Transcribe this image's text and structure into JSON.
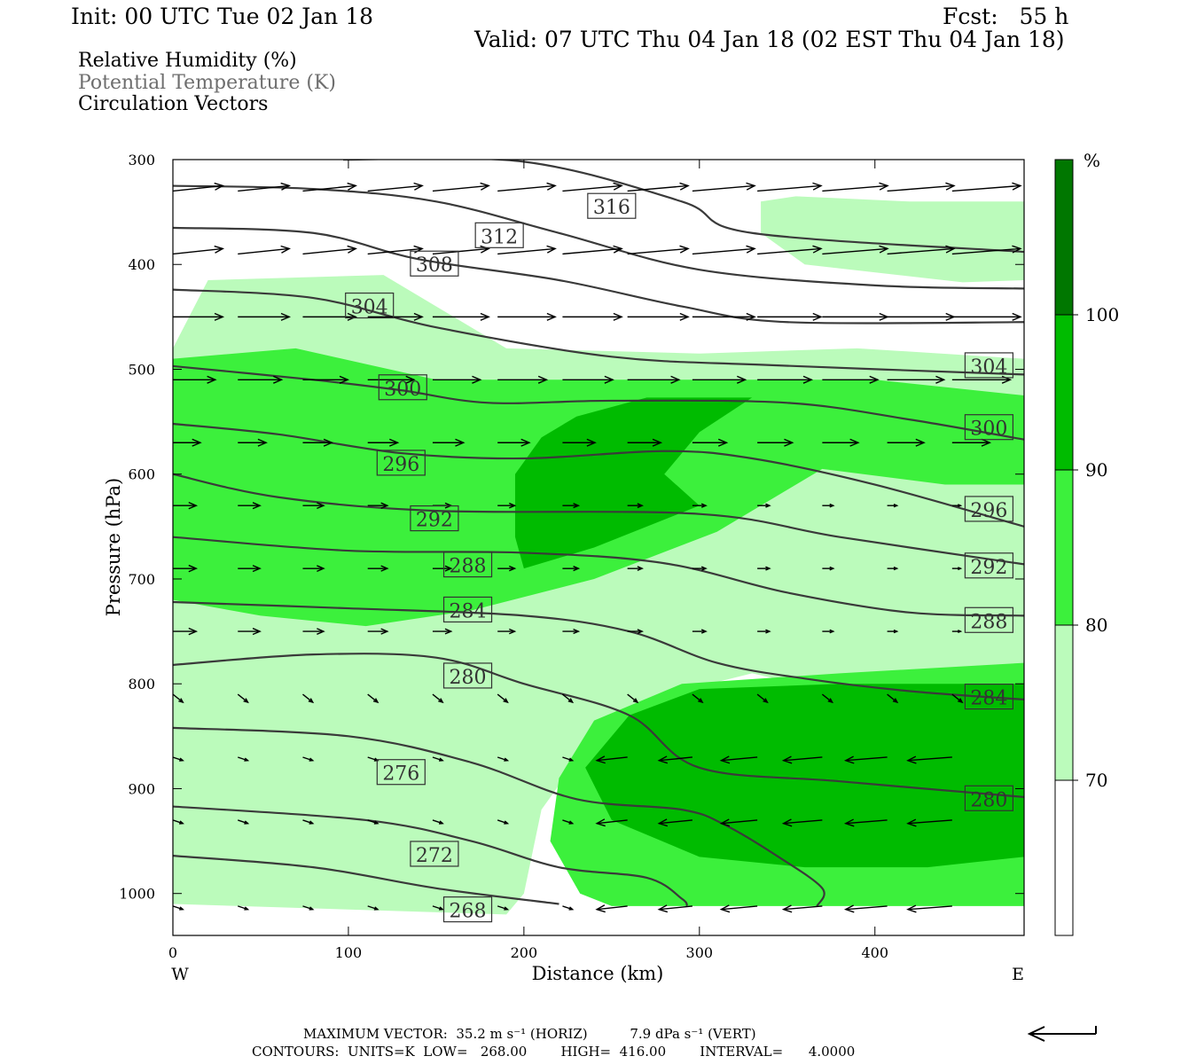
{
  "header": {
    "init": "Init: 00 UTC Tue 02 Jan 18",
    "fcst": "Fcst:   55 h",
    "valid": "Valid: 07 UTC Thu 04 Jan 18 (02 EST Thu 04 Jan 18)"
  },
  "legend_lines": {
    "rh": "Relative Humidity (%)",
    "theta": "Potential Temperature (K)",
    "vectors": "Circulation Vectors"
  },
  "footer": {
    "max_vector": "MAXIMUM VECTOR:  35.2 m s⁻¹ (HORIZ)          7.9 dPa s⁻¹ (VERT)",
    "contours": "CONTOURS:  UNITS=K  LOW=   268.00        HIGH=  416.00        INTERVAL=      4.0000"
  },
  "chart_data": {
    "type": "contour cross-section",
    "xlabel": "Distance (km)",
    "ylabel": "Pressure (hPa)",
    "xlim": [
      0,
      485
    ],
    "ylim": [
      1040,
      300
    ],
    "x_ticks": [
      0,
      100,
      200,
      300,
      400
    ],
    "y_ticks": [
      300,
      400,
      500,
      600,
      700,
      800,
      900,
      1000
    ],
    "x_end_labels": {
      "left": "W",
      "right": "E"
    },
    "colorbar": {
      "unit": "%",
      "levels": [
        70,
        80,
        90,
        100
      ],
      "colors": [
        "#ffffff",
        "#bbfbbb",
        "#3cf03c",
        "#00bb00",
        "#007700"
      ]
    },
    "theta_isentropes": [
      {
        "label": "316",
        "points": [
          [
            97,
            300
          ],
          [
            200,
            302
          ],
          [
            290,
            340
          ],
          [
            330,
            370
          ],
          [
            485,
            388
          ]
        ]
      },
      {
        "label": "312",
        "points": [
          [
            0,
            325
          ],
          [
            80,
            328
          ],
          [
            150,
            340
          ],
          [
            220,
            370
          ],
          [
            300,
            405
          ],
          [
            400,
            420
          ],
          [
            485,
            423
          ]
        ]
      },
      {
        "label": "308",
        "points": [
          [
            0,
            365
          ],
          [
            80,
            370
          ],
          [
            140,
            395
          ],
          [
            220,
            415
          ],
          [
            290,
            440
          ],
          [
            350,
            455
          ],
          [
            485,
            455
          ]
        ]
      },
      {
        "label": "304",
        "points": [
          [
            0,
            424
          ],
          [
            80,
            432
          ],
          [
            150,
            460
          ],
          [
            250,
            488
          ],
          [
            340,
            496
          ],
          [
            485,
            505
          ]
        ]
      },
      {
        "label": "300",
        "points": [
          [
            0,
            497
          ],
          [
            80,
            510
          ],
          [
            130,
            520
          ],
          [
            180,
            532
          ],
          [
            250,
            530
          ],
          [
            350,
            532
          ],
          [
            420,
            548
          ],
          [
            485,
            567
          ]
        ]
      },
      {
        "label": "296",
        "points": [
          [
            0,
            552
          ],
          [
            60,
            562
          ],
          [
            130,
            580
          ],
          [
            200,
            585
          ],
          [
            280,
            578
          ],
          [
            330,
            585
          ],
          [
            400,
            610
          ],
          [
            485,
            650
          ]
        ]
      },
      {
        "label": "292",
        "points": [
          [
            0,
            600
          ],
          [
            60,
            622
          ],
          [
            150,
            635
          ],
          [
            300,
            638
          ],
          [
            380,
            660
          ],
          [
            485,
            686
          ]
        ]
      },
      {
        "label": "288",
        "points": [
          [
            0,
            660
          ],
          [
            100,
            673
          ],
          [
            200,
            675
          ],
          [
            280,
            685
          ],
          [
            350,
            713
          ],
          [
            420,
            732
          ],
          [
            485,
            735
          ]
        ]
      },
      {
        "label": "284",
        "points": [
          [
            0,
            722
          ],
          [
            100,
            728
          ],
          [
            200,
            735
          ],
          [
            260,
            750
          ],
          [
            310,
            780
          ],
          [
            360,
            795
          ],
          [
            420,
            807
          ],
          [
            485,
            815
          ]
        ]
      },
      {
        "label": "280",
        "points": [
          [
            0,
            782
          ],
          [
            80,
            772
          ],
          [
            150,
            775
          ],
          [
            200,
            800
          ],
          [
            260,
            830
          ],
          [
            300,
            880
          ],
          [
            380,
            893
          ],
          [
            485,
            908
          ]
        ]
      },
      {
        "label": "276",
        "points": [
          [
            0,
            842
          ],
          [
            100,
            850
          ],
          [
            170,
            875
          ],
          [
            230,
            910
          ],
          [
            290,
            920
          ],
          [
            315,
            935
          ],
          [
            345,
            965
          ],
          [
            370,
            995
          ],
          [
            367,
            1012
          ]
        ]
      },
      {
        "label": "272",
        "points": [
          [
            0,
            917
          ],
          [
            110,
            930
          ],
          [
            170,
            950
          ],
          [
            220,
            975
          ],
          [
            270,
            985
          ],
          [
            290,
            1005
          ],
          [
            293,
            1012
          ]
        ]
      },
      {
        "label": "268",
        "points": [
          [
            0,
            964
          ],
          [
            80,
            975
          ],
          [
            150,
            995
          ],
          [
            220,
            1010
          ]
        ]
      }
    ],
    "theta_label_positions": {
      "316": [
        250,
        345
      ],
      "312": [
        186,
        373
      ],
      "308": [
        149,
        400
      ],
      "304": [
        112,
        440
      ],
      "300": [
        131,
        518
      ],
      "296": [
        130,
        590
      ],
      "292": [
        149,
        643
      ],
      "288": [
        168,
        687
      ],
      "284": [
        168,
        730
      ],
      "280": [
        168,
        793
      ],
      "276": [
        130,
        885
      ],
      "272": [
        149,
        963
      ],
      "268": [
        168,
        1016
      ],
      "304r": [
        465,
        497
      ],
      "300r": [
        465,
        556
      ],
      "296r": [
        465,
        634
      ],
      "292r": [
        465,
        688
      ],
      "288r": [
        465,
        740
      ],
      "284r": [
        465,
        813
      ],
      "280r": [
        465,
        910
      ]
    },
    "rh_regions": [
      {
        "level": 70,
        "points": [
          [
            0,
            480
          ],
          [
            20,
            415
          ],
          [
            120,
            410
          ],
          [
            160,
            450
          ],
          [
            190,
            480
          ],
          [
            300,
            485
          ],
          [
            390,
            480
          ],
          [
            485,
            490
          ],
          [
            485,
            805
          ],
          [
            410,
            820
          ],
          [
            330,
            790
          ],
          [
            270,
            815
          ],
          [
            240,
            850
          ],
          [
            210,
            920
          ],
          [
            200,
            1000
          ],
          [
            190,
            1020
          ],
          [
            0,
            1010
          ]
        ]
      },
      {
        "level": 70,
        "points": [
          [
            335,
            340
          ],
          [
            355,
            335
          ],
          [
            420,
            340
          ],
          [
            485,
            340
          ],
          [
            485,
            415
          ],
          [
            450,
            417
          ],
          [
            360,
            400
          ],
          [
            335,
            370
          ]
        ]
      },
      {
        "level": 80,
        "points": [
          [
            0,
            490
          ],
          [
            70,
            480
          ],
          [
            110,
            495
          ],
          [
            150,
            510
          ],
          [
            200,
            510
          ],
          [
            300,
            510
          ],
          [
            400,
            510
          ],
          [
            485,
            525
          ],
          [
            485,
            610
          ],
          [
            440,
            610
          ],
          [
            370,
            595
          ],
          [
            310,
            655
          ],
          [
            240,
            700
          ],
          [
            170,
            730
          ],
          [
            110,
            745
          ],
          [
            50,
            735
          ],
          [
            0,
            720
          ]
        ]
      },
      {
        "level": 80,
        "points": [
          [
            240,
            835
          ],
          [
            290,
            800
          ],
          [
            380,
            790
          ],
          [
            485,
            780
          ],
          [
            485,
            1012
          ],
          [
            250,
            1012
          ],
          [
            232,
            1000
          ],
          [
            215,
            950
          ],
          [
            220,
            890
          ]
        ]
      },
      {
        "level": 90,
        "points": [
          [
            195,
            600
          ],
          [
            210,
            565
          ],
          [
            230,
            545
          ],
          [
            270,
            527
          ],
          [
            330,
            527
          ],
          [
            300,
            560
          ],
          [
            280,
            600
          ],
          [
            300,
            630
          ],
          [
            240,
            670
          ],
          [
            200,
            690
          ],
          [
            195,
            660
          ]
        ]
      },
      {
        "level": 90,
        "points": [
          [
            235,
            880
          ],
          [
            260,
            830
          ],
          [
            300,
            805
          ],
          [
            380,
            800
          ],
          [
            485,
            800
          ],
          [
            485,
            965
          ],
          [
            430,
            975
          ],
          [
            360,
            975
          ],
          [
            300,
            965
          ],
          [
            250,
            930
          ]
        ]
      }
    ],
    "vectors": {
      "count": 184,
      "sample_rows_hpa": [
        330,
        390,
        450,
        510,
        570,
        630,
        690,
        750,
        810,
        870,
        930,
        1012
      ],
      "flow": "westerly aloft (400-500 hPa strongest), weak flow 700-800 hPa, easterly near surface east of 250 km"
    },
    "reference_vector": "westward (leftward) arrow"
  }
}
